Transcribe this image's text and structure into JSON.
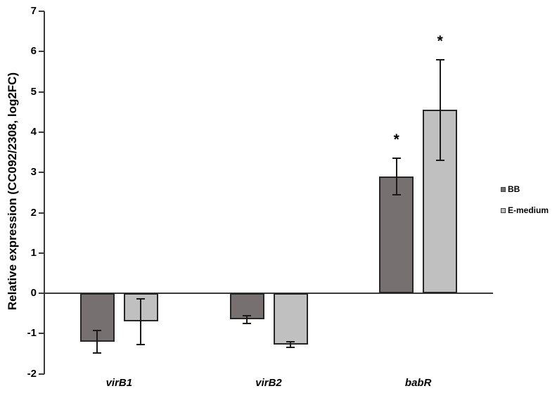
{
  "figure": {
    "background_color": "#ffffff"
  },
  "chart_data": {
    "type": "bar",
    "title": "",
    "xlabel": "",
    "ylabel": "Relative expression (CC092/2308, log2FC)",
    "ylim": [
      -2,
      7
    ],
    "yticks": [
      7,
      6,
      5,
      4,
      3,
      2,
      1,
      0,
      -1,
      -2
    ],
    "grid": false,
    "legend_position": "right",
    "categories": [
      "virB1",
      "virB2",
      "babR"
    ],
    "series": [
      {
        "name": "BB",
        "color": "#767071",
        "values": [
          -1.2,
          -0.65,
          2.9
        ],
        "errors": [
          0.28,
          0.09,
          0.45
        ],
        "significant": [
          false,
          false,
          true
        ]
      },
      {
        "name": "E-medium",
        "color": "#c1c0c0",
        "values": [
          -0.7,
          -1.28,
          4.55
        ],
        "errors": [
          0.57,
          0.07,
          1.25
        ],
        "significant": [
          false,
          false,
          true
        ]
      }
    ],
    "significance_marker": "*",
    "annotations": [
      "* above babR BB bar",
      "* above babR E-medium bar"
    ]
  },
  "legend": {
    "items": [
      {
        "label": "BB",
        "color": "#767071"
      },
      {
        "label": "E-medium",
        "color": "#c1c0c0"
      }
    ]
  }
}
